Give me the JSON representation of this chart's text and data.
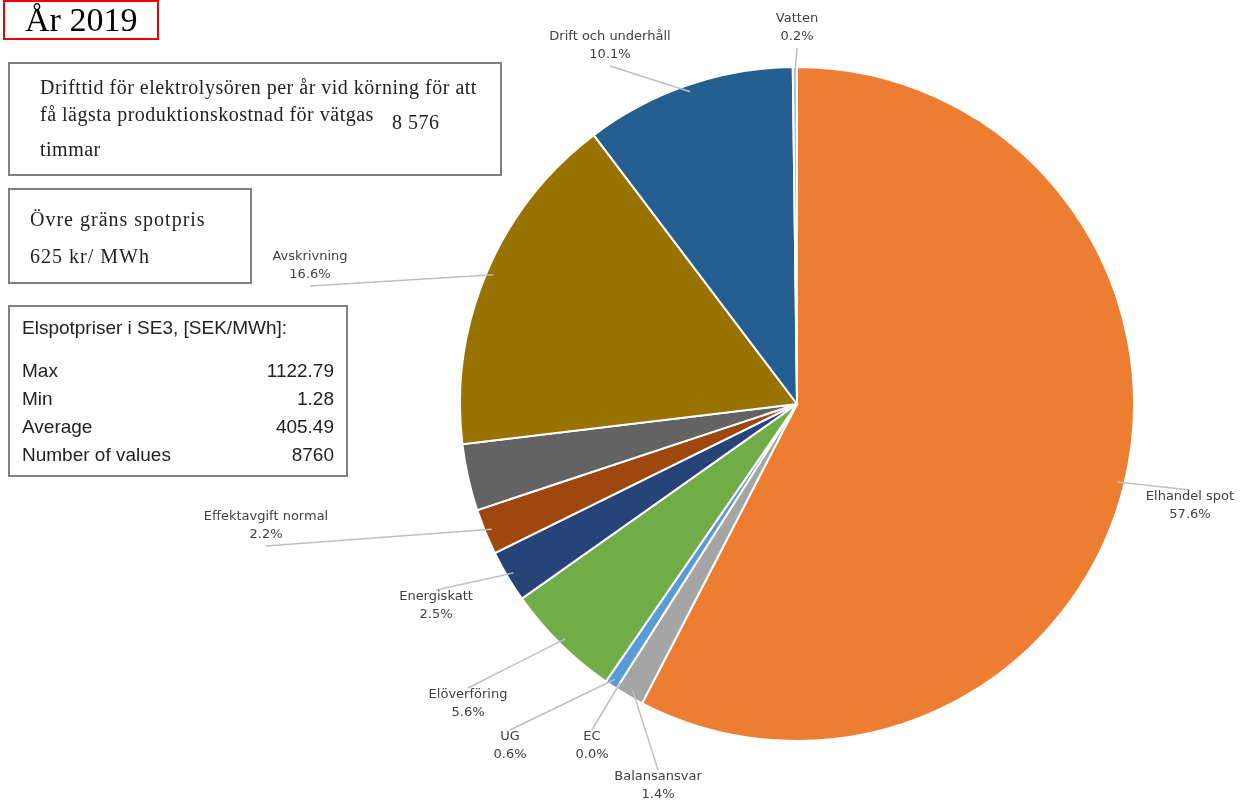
{
  "chart_data": {
    "type": "pie",
    "title": "År 2019",
    "categories": [
      "Elhandel spot",
      "Balansansvar",
      "EC",
      "UG",
      "Elöverföring",
      "Energiskatt",
      "Effektavgift normal",
      null,
      "Avskrivning",
      "Drift och underhåll",
      "Vatten"
    ],
    "values": [
      57.6,
      1.4,
      0.0,
      0.6,
      5.6,
      2.5,
      2.2,
      3.2,
      16.6,
      10.1,
      0.2
    ],
    "value_labels": [
      "57.6%",
      "1.4%",
      "0.0%",
      "0.6%",
      "5.6%",
      "2.5%",
      "2.2%",
      null,
      "16.6%",
      "10.1%",
      "0.2%"
    ],
    "colors": [
      "#ed7d31",
      "#a5a5a5",
      "#ffc000",
      "#5b9bd5",
      "#70ad47",
      "#264478",
      "#9e480e",
      "#636363",
      "#997300",
      "#255e91",
      "#a9bfe6"
    ],
    "annotations": [
      "Drifttid för elektrolysören per år vid körning för att få lägsta produktionskostnad för vätgas",
      "8 576 timmar",
      "Övre gräns spotpris",
      "625 kr/ MWh",
      "Elspotpriser i SE3, [SEK/MWh]:",
      "Max",
      "1122.79",
      "Min",
      "1.28",
      "Average",
      "405.49",
      "Number of values",
      "8760"
    ]
  }
}
